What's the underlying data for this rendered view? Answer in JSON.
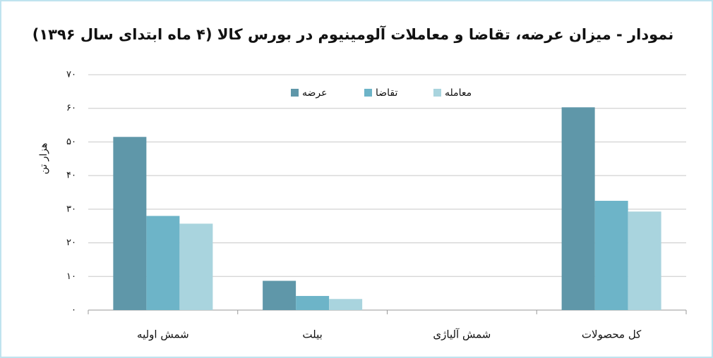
{
  "chart_data": {
    "type": "bar",
    "title": "نمودار - میزان عرضه، تقاضا و معاملات آلومینیوم در بورس کالا (۴ ماه ابتدای سال ۱۳۹۶)",
    "y_label": "هزار تن",
    "categories": [
      "شمش اولیه",
      "بیلت",
      "شمش آلیاژی",
      "کل محصولات"
    ],
    "series": [
      {
        "name": "عرضه",
        "color": "#5f97a9",
        "values": [
          51.5,
          8.7,
          0,
          60.3
        ]
      },
      {
        "name": "تقاضا",
        "color": "#6db4c8",
        "values": [
          28,
          4.2,
          0,
          32.5
        ]
      },
      {
        "name": "معامله",
        "color": "#a9d4de",
        "values": [
          25.7,
          3.3,
          0,
          29.3
        ]
      }
    ],
    "ylim": [
      0,
      70
    ],
    "yticks": [
      {
        "value": 0,
        "label": "۰"
      },
      {
        "value": 10,
        "label": "۱۰"
      },
      {
        "value": 20,
        "label": "۲۰"
      },
      {
        "value": 30,
        "label": "۳۰"
      },
      {
        "value": 40,
        "label": "۴۰"
      },
      {
        "value": 50,
        "label": "۵۰"
      },
      {
        "value": 60,
        "label": "۶۰"
      },
      {
        "value": 70,
        "label": "۷۰"
      }
    ],
    "grid": true
  }
}
